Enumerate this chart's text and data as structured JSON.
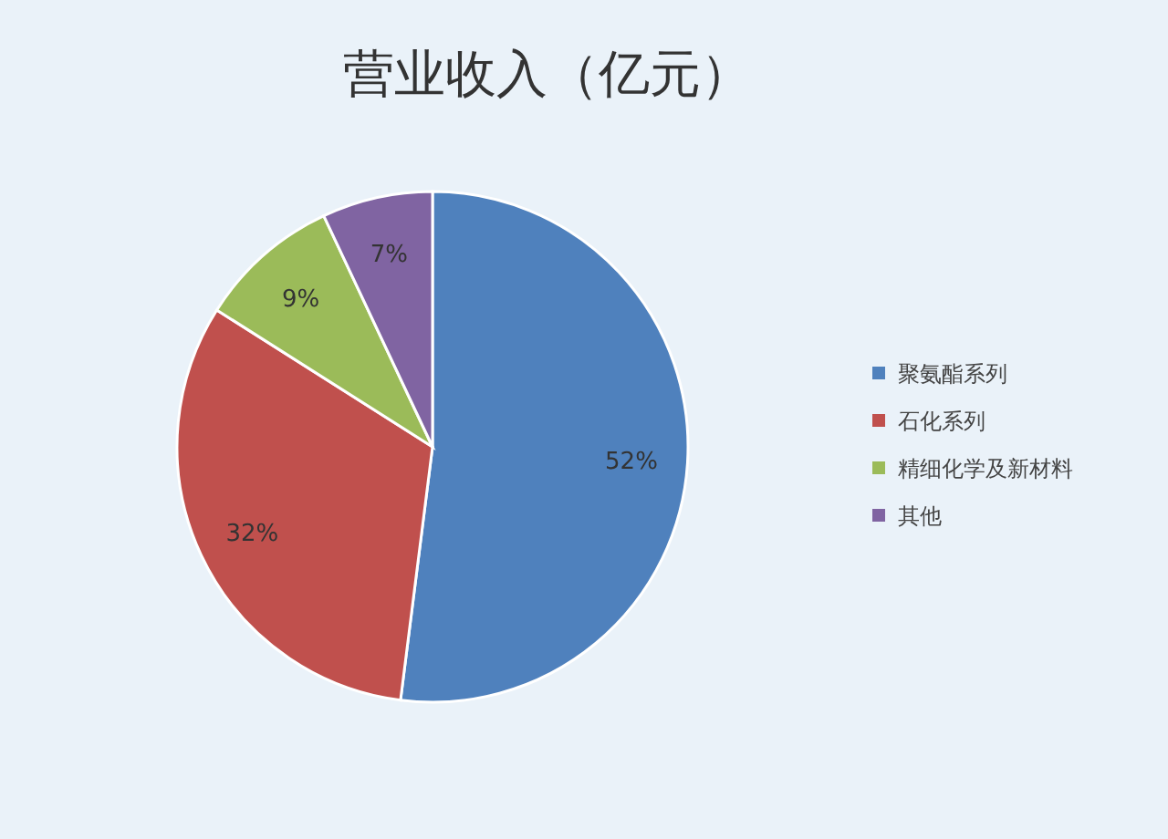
{
  "chart_data": {
    "type": "pie",
    "title": "营业收入（亿元）",
    "categories": [
      "聚氨酯系列",
      "石化系列",
      "精细化学及新材料",
      "其他"
    ],
    "values": [
      52,
      32,
      9,
      7
    ],
    "value_labels": [
      "52%",
      "32%",
      "9%",
      "7%"
    ],
    "colors": [
      "#4f81bd",
      "#c0504d",
      "#9bbb59",
      "#8064a2"
    ],
    "legend": "right"
  }
}
